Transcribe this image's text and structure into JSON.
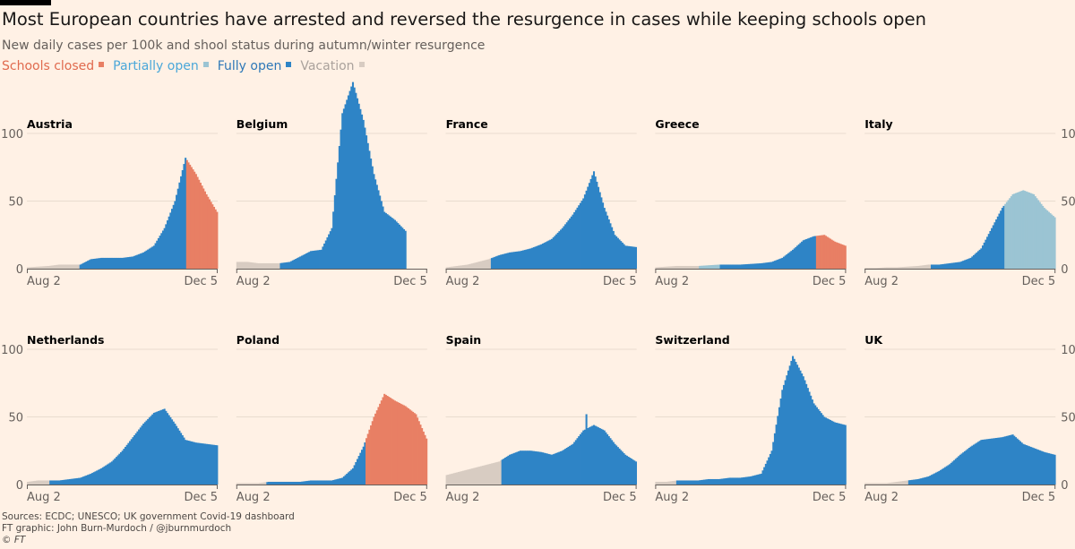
{
  "title": "Most European countries have arrested and reversed the resurgence in cases while keeping schools open",
  "subtitle": "New daily cases per 100k and shool status during autumn/winter resurgence",
  "legend": [
    {
      "key": "closed",
      "label": "Schools closed",
      "text_color": "#e06a4e",
      "color": "#e87f64"
    },
    {
      "key": "partial",
      "label": "Partially open",
      "text_color": "#4aa7d9",
      "color": "#9bc4d3"
    },
    {
      "key": "full",
      "label": "Fully open",
      "text_color": "#2e78b7",
      "color": "#2e84c6"
    },
    {
      "key": "vacation",
      "label": "Vacation",
      "text_color": "#aaa29c",
      "color": "#d8ccc2"
    }
  ],
  "footer": {
    "sources": "Sources: ECDC; UNESCO; UK government Covid-19 dashboard",
    "credit": "FT graphic: John Burn-Murdoch / @jburnmurdoch",
    "copyright": "© FT"
  },
  "chart_data": {
    "type": "area",
    "small_multiples": true,
    "ylabel": "New daily cases per 100k",
    "ylim": [
      0,
      100
    ],
    "yticks": [
      0,
      50,
      100
    ],
    "xtick_labels": [
      "Aug 2",
      "Dec 5"
    ],
    "x_days": [
      0,
      7,
      14,
      21,
      28,
      35,
      42,
      49,
      56,
      63,
      70,
      77,
      84,
      91,
      98,
      105,
      112,
      119,
      126
    ],
    "x_unit": "days since Aug 2 (weekly samples)",
    "panels": [
      {
        "country": "Austria",
        "values": [
          1,
          1.5,
          2,
          3,
          3,
          3,
          7,
          8,
          8,
          8,
          9,
          12,
          17,
          30,
          50,
          82,
          70,
          55,
          42
        ],
        "status": [
          [
            0,
            35,
            "vacation"
          ],
          [
            35,
            106,
            "full"
          ],
          [
            106,
            126,
            "closed"
          ]
        ]
      },
      {
        "country": "Belgium",
        "values": [
          5,
          5,
          4,
          4,
          4,
          5,
          9,
          13,
          14,
          30,
          115,
          138,
          110,
          70,
          42,
          36,
          28,
          null,
          null
        ],
        "status": [
          [
            0,
            29,
            "vacation"
          ],
          [
            29,
            114,
            "full"
          ]
        ]
      },
      {
        "country": "France",
        "values": [
          1,
          2,
          3,
          5,
          7,
          10,
          12,
          13,
          15,
          18,
          22,
          30,
          40,
          52,
          72,
          45,
          25,
          17,
          16
        ],
        "status": [
          [
            0,
            30,
            "vacation"
          ],
          [
            30,
            126,
            "full"
          ]
        ]
      },
      {
        "country": "Greece",
        "values": [
          1,
          1.5,
          2,
          2,
          2,
          2.5,
          3,
          3,
          3,
          3.5,
          4,
          5,
          8,
          14,
          21,
          24,
          25,
          20,
          17
        ],
        "status": [
          [
            0,
            29,
            "vacation"
          ],
          [
            29,
            43,
            "partial"
          ],
          [
            43,
            107,
            "full"
          ],
          [
            107,
            126,
            "closed"
          ]
        ]
      },
      {
        "country": "Italy",
        "values": [
          0.5,
          0.5,
          1,
          1,
          1.5,
          2,
          3,
          3,
          4,
          5,
          8,
          15,
          30,
          45,
          55,
          58,
          55,
          45,
          38
        ],
        "status": [
          [
            0,
            44,
            "vacation"
          ],
          [
            44,
            93,
            "full"
          ],
          [
            93,
            126,
            "partial"
          ]
        ]
      },
      {
        "country": "Netherlands",
        "values": [
          2,
          3,
          3,
          3,
          4,
          5,
          8,
          12,
          17,
          25,
          35,
          45,
          53,
          56,
          45,
          33,
          31,
          30,
          29
        ],
        "status": [
          [
            0,
            15,
            "vacation"
          ],
          [
            15,
            126,
            "full"
          ]
        ]
      },
      {
        "country": "Poland",
        "values": [
          1,
          1,
          1,
          2,
          2,
          2,
          2,
          3,
          3,
          3,
          5,
          12,
          28,
          50,
          67,
          62,
          58,
          52,
          34
        ],
        "status": [
          [
            0,
            20,
            "vacation"
          ],
          [
            20,
            86,
            "full"
          ],
          [
            86,
            126,
            "closed"
          ]
        ]
      },
      {
        "country": "Spain",
        "values": [
          7,
          9,
          11,
          13,
          15,
          17,
          22,
          25,
          25,
          24,
          22,
          25,
          30,
          40,
          44,
          40,
          30,
          22,
          17
        ],
        "status": [
          [
            0,
            37,
            "vacation"
          ],
          [
            37,
            126,
            "full"
          ]
        ]
      },
      {
        "country": "Switzerland",
        "values": [
          2,
          2,
          3,
          3,
          3,
          4,
          4,
          5,
          5,
          6,
          8,
          25,
          70,
          95,
          80,
          60,
          50,
          46,
          44
        ],
        "status": [
          [
            0,
            14,
            "vacation"
          ],
          [
            14,
            126,
            "full"
          ]
        ]
      },
      {
        "country": "UK",
        "values": [
          1,
          1,
          1,
          2,
          3,
          4,
          6,
          10,
          15,
          22,
          28,
          33,
          34,
          35,
          37,
          30,
          27,
          24,
          22
        ],
        "status": [
          [
            0,
            29,
            "vacation"
          ],
          [
            29,
            126,
            "full"
          ]
        ]
      }
    ]
  }
}
